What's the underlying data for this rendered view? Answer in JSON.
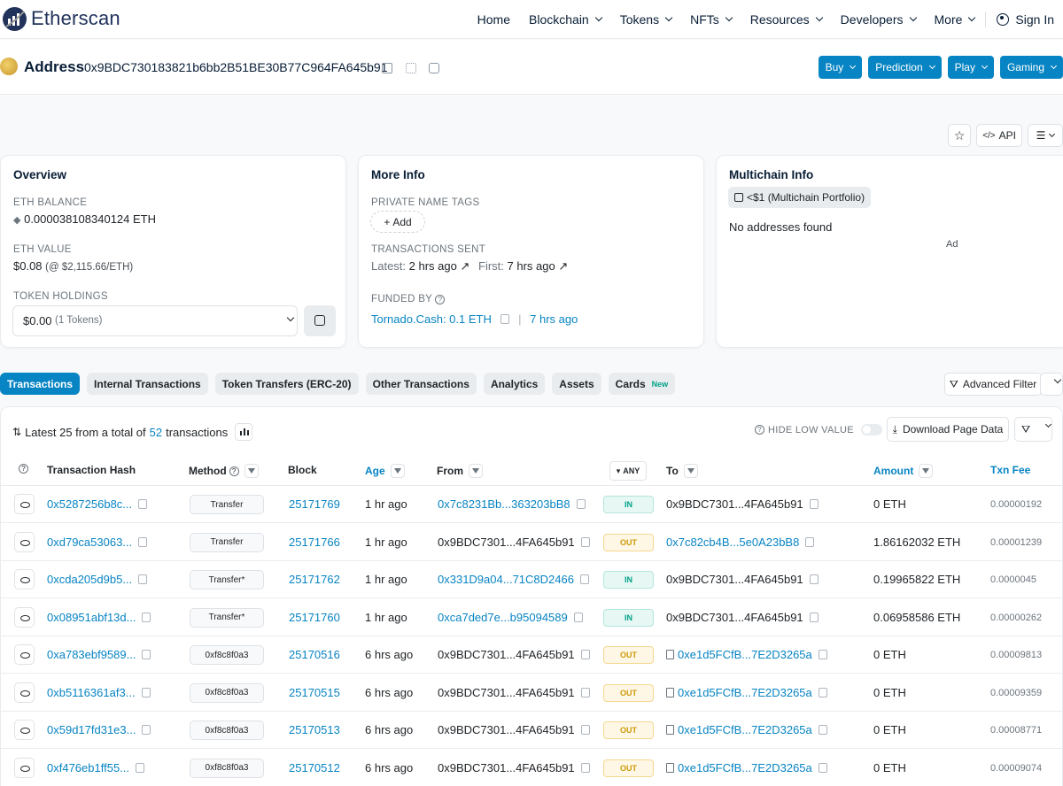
{
  "nav": {
    "brand": "Etherscan",
    "items": [
      "Home",
      "Blockchain",
      "Tokens",
      "NFTs",
      "Resources",
      "Developers",
      "More"
    ],
    "sign_in": "Sign In"
  },
  "address": {
    "title": "Address",
    "hash": "0x9BDC730183821b6bb2B51BE30B77C964FA645b91",
    "buttons": [
      "Buy",
      "Prediction",
      "Play",
      "Gaming"
    ]
  },
  "actions": {
    "api": "API"
  },
  "overview": {
    "title": "Overview",
    "eth_balance_label": "ETH BALANCE",
    "eth_balance": "0.000038108340124 ETH",
    "eth_value_label": "ETH VALUE",
    "eth_value": "$0.08",
    "eth_value_note": "(@ $2,115.66/ETH)",
    "token_holdings_label": "TOKEN HOLDINGS",
    "token_value": "$0.00",
    "token_count": "(1 Tokens)"
  },
  "more_info": {
    "title": "More Info",
    "private_tags_label": "PRIVATE NAME TAGS",
    "add_label": "Add",
    "tx_sent_label": "TRANSACTIONS SENT",
    "latest_label": "Latest:",
    "latest_value": "2 hrs ago",
    "first_label": "First:",
    "first_value": "7 hrs ago",
    "funded_by_label": "FUNDED BY",
    "funded_by": "Tornado.Cash: 0.1 ETH",
    "funded_age": "7 hrs ago"
  },
  "multichain": {
    "title": "Multichain Info",
    "chip": "<$1 (Multichain Portfolio)",
    "no_addresses": "No addresses found",
    "ad": "Ad"
  },
  "tabs": [
    {
      "label": "Transactions",
      "active": true
    },
    {
      "label": "Internal Transactions"
    },
    {
      "label": "Token Transfers (ERC-20)"
    },
    {
      "label": "Other Transactions"
    },
    {
      "label": "Analytics"
    },
    {
      "label": "Assets"
    },
    {
      "label": "Cards",
      "badge": "New"
    }
  ],
  "advanced_filter": "Advanced Filter",
  "tx_summary": {
    "prefix": "Latest 25 from a total of",
    "count": "52",
    "suffix": "transactions"
  },
  "hide_low_value": "HIDE LOW VALUE",
  "download": "Download Page Data",
  "columns": {
    "hash": "Transaction Hash",
    "method": "Method",
    "block": "Block",
    "age": "Age",
    "from": "From",
    "any": "ANY",
    "to": "To",
    "amount": "Amount",
    "fee": "Txn Fee"
  },
  "rows": [
    {
      "hash": "0x5287256b8c...",
      "method": "Transfer",
      "block": "25171769",
      "age": "1 hr ago",
      "from": "0x7c8231Bb...363203bB8",
      "from_link": true,
      "dir": "IN",
      "to": "0x9BDC7301...4FA645b91",
      "to_link": false,
      "to_contract": false,
      "amount": "0 ETH",
      "fee": "0.00000192"
    },
    {
      "hash": "0xd79ca53063...",
      "method": "Transfer",
      "block": "25171766",
      "age": "1 hr ago",
      "from": "0x9BDC7301...4FA645b91",
      "from_link": false,
      "dir": "OUT",
      "to": "0x7c82cb4B...5e0A23bB8",
      "to_link": true,
      "to_contract": false,
      "amount": "1.86162032 ETH",
      "fee": "0.00001239"
    },
    {
      "hash": "0xcda205d9b5...",
      "method": "Transfer*",
      "block": "25171762",
      "age": "1 hr ago",
      "from": "0x331D9a04...71C8D2466",
      "from_link": true,
      "dir": "IN",
      "to": "0x9BDC7301...4FA645b91",
      "to_link": false,
      "to_contract": false,
      "amount": "0.19965822 ETH",
      "fee": "0.0000045"
    },
    {
      "hash": "0x08951abf13d...",
      "method": "Transfer*",
      "block": "25171760",
      "age": "1 hr ago",
      "from": "0xca7ded7e...b95094589",
      "from_link": true,
      "dir": "IN",
      "to": "0x9BDC7301...4FA645b91",
      "to_link": false,
      "to_contract": false,
      "amount": "0.06958586 ETH",
      "fee": "0.00000262"
    },
    {
      "hash": "0xa783ebf9589...",
      "method": "0xf8c8f0a3",
      "block": "25170516",
      "age": "6 hrs ago",
      "from": "0x9BDC7301...4FA645b91",
      "from_link": false,
      "dir": "OUT",
      "to": "0xe1d5FCfB...7E2D3265a",
      "to_link": true,
      "to_contract": true,
      "amount": "0 ETH",
      "fee": "0.00009813"
    },
    {
      "hash": "0xb5116361af3...",
      "method": "0xf8c8f0a3",
      "block": "25170515",
      "age": "6 hrs ago",
      "from": "0x9BDC7301...4FA645b91",
      "from_link": false,
      "dir": "OUT",
      "to": "0xe1d5FCfB...7E2D3265a",
      "to_link": true,
      "to_contract": true,
      "amount": "0 ETH",
      "fee": "0.00009359"
    },
    {
      "hash": "0x59d17fd31e3...",
      "method": "0xf8c8f0a3",
      "block": "25170513",
      "age": "6 hrs ago",
      "from": "0x9BDC7301...4FA645b91",
      "from_link": false,
      "dir": "OUT",
      "to": "0xe1d5FCfB...7E2D3265a",
      "to_link": true,
      "to_contract": true,
      "amount": "0 ETH",
      "fee": "0.00008771"
    },
    {
      "hash": "0xf476eb1ff55...",
      "method": "0xf8c8f0a3",
      "block": "25170512",
      "age": "6 hrs ago",
      "from": "0x9BDC7301...4FA645b91",
      "from_link": false,
      "dir": "OUT",
      "to": "0xe1d5FCfB...7E2D3265a",
      "to_link": true,
      "to_contract": true,
      "amount": "0 ETH",
      "fee": "0.00009074"
    }
  ],
  "colors": {
    "link": "#0784c3",
    "navy": "#21325b",
    "in": "#00a186",
    "out": "#cc9a06"
  },
  "icons": [
    "etherscan-logo-icon",
    "user-icon",
    "copy-icon",
    "qr-code-icon",
    "comment-icon",
    "star-icon",
    "code-icon",
    "list-icon",
    "eth-icon",
    "wallet-icon",
    "plus-icon",
    "question-icon",
    "arrow-up-right-icon",
    "filter-icon",
    "sort-icon",
    "chart-icon",
    "download-icon",
    "eye-icon",
    "contract-icon"
  ]
}
